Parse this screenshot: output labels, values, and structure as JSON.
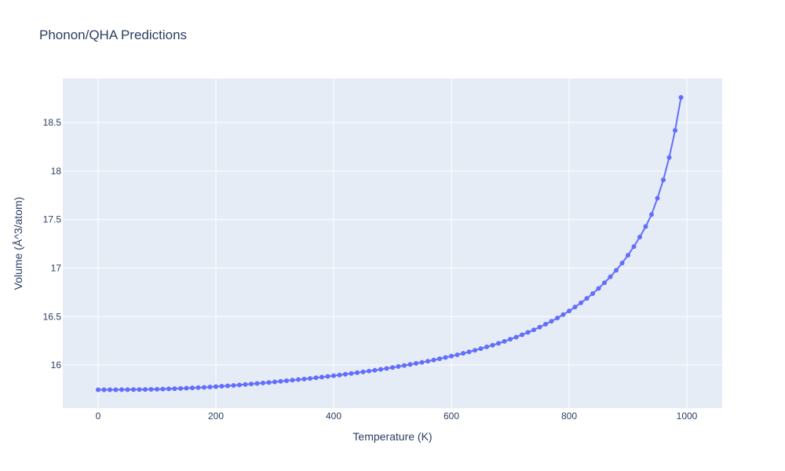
{
  "chart_data": {
    "type": "scatter",
    "mode": "lines+markers",
    "title": "Phonon/QHA Predictions",
    "xlabel": "Temperature (K)",
    "ylabel": "Volume (Å^3/atom)",
    "xlim": [
      -60,
      1060
    ],
    "ylim": [
      15.555,
      18.955
    ],
    "x_ticks": [
      0,
      200,
      400,
      600,
      800,
      1000
    ],
    "x_tick_labels": [
      "0",
      "200",
      "400",
      "600",
      "800",
      "1000"
    ],
    "y_ticks": [
      16,
      16.5,
      17,
      17.5,
      18,
      18.5
    ],
    "y_tick_labels": [
      "16",
      "16.5",
      "17",
      "17.5",
      "18",
      "18.5"
    ],
    "grid": true,
    "colors": {
      "series": "#636efa",
      "plot_bg": "#e5ecf6",
      "grid": "#ffffff",
      "text": "#2a3f5f"
    },
    "series": [
      {
        "x": [
          0,
          10,
          20,
          30,
          40,
          50,
          60,
          70,
          80,
          90,
          100,
          110,
          120,
          130,
          140,
          150,
          160,
          170,
          180,
          190,
          200,
          210,
          220,
          230,
          240,
          250,
          260,
          270,
          280,
          290,
          300,
          310,
          320,
          330,
          340,
          350,
          360,
          370,
          380,
          390,
          400,
          410,
          420,
          430,
          440,
          450,
          460,
          470,
          480,
          490,
          500,
          510,
          520,
          530,
          540,
          550,
          560,
          570,
          580,
          590,
          600,
          610,
          620,
          630,
          640,
          650,
          660,
          670,
          680,
          690,
          700,
          710,
          720,
          730,
          740,
          750,
          760,
          770,
          780,
          790,
          800,
          810,
          820,
          830,
          840,
          850,
          860,
          870,
          880,
          890,
          900,
          910,
          920,
          930,
          940,
          950,
          960,
          970,
          980,
          990
        ],
        "y": [
          15.745,
          15.745,
          15.745,
          15.745,
          15.746,
          15.746,
          15.747,
          15.747,
          15.748,
          15.749,
          15.75,
          15.752,
          15.754,
          15.756,
          15.758,
          15.761,
          15.764,
          15.767,
          15.77,
          15.774,
          15.778,
          15.782,
          15.786,
          15.79,
          15.795,
          15.8,
          15.805,
          15.81,
          15.815,
          15.82,
          15.826,
          15.832,
          15.838,
          15.844,
          15.85,
          15.856,
          15.862,
          15.869,
          15.876,
          15.883,
          15.89,
          15.897,
          15.905,
          15.913,
          15.921,
          15.929,
          15.938,
          15.947,
          15.956,
          15.965,
          15.975,
          15.985,
          15.995,
          16.006,
          16.017,
          16.028,
          16.04,
          16.052,
          16.065,
          16.078,
          16.092,
          16.106,
          16.121,
          16.136,
          16.152,
          16.169,
          16.187,
          16.205,
          16.224,
          16.244,
          16.266,
          16.288,
          16.312,
          16.337,
          16.363,
          16.391,
          16.421,
          16.452,
          16.485,
          16.52,
          16.558,
          16.598,
          16.641,
          16.687,
          16.737,
          16.79,
          16.848,
          16.91,
          16.978,
          17.052,
          17.133,
          17.222,
          17.32,
          17.429,
          17.552,
          17.72,
          17.91,
          18.14,
          18.42,
          18.76
        ]
      }
    ]
  }
}
